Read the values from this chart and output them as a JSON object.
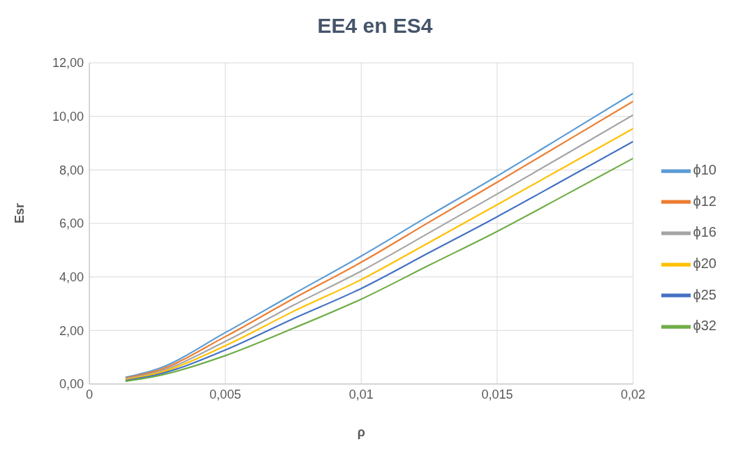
{
  "chart_data": {
    "type": "line",
    "title": "EE4 en ES4",
    "xlabel": "ρ",
    "ylabel": "Esr",
    "x": [
      0.00133,
      0.0025,
      0.005,
      0.0075,
      0.01,
      0.0125,
      0.015,
      0.0175,
      0.02
    ],
    "series": [
      {
        "name": "ϕ10",
        "color": "#5b9bd5",
        "values": [
          0.25,
          0.56,
          1.92,
          3.36,
          4.78,
          6.29,
          7.77,
          9.31,
          10.86
        ]
      },
      {
        "name": "ϕ12",
        "color": "#ed7d31",
        "values": [
          0.22,
          0.5,
          1.77,
          3.19,
          4.55,
          6.05,
          7.54,
          9.05,
          10.56
        ]
      },
      {
        "name": "ϕ16",
        "color": "#a5a5a5",
        "values": [
          0.19,
          0.45,
          1.59,
          2.94,
          4.22,
          5.65,
          7.1,
          8.57,
          10.05
        ]
      },
      {
        "name": "ϕ20",
        "color": "#ffc000",
        "values": [
          0.16,
          0.4,
          1.43,
          2.71,
          3.9,
          5.29,
          6.7,
          8.12,
          9.54
        ]
      },
      {
        "name": "ϕ25",
        "color": "#4472c4",
        "values": [
          0.13,
          0.35,
          1.27,
          2.44,
          3.57,
          4.91,
          6.25,
          7.65,
          9.06
        ]
      },
      {
        "name": "ϕ32",
        "color": "#70ad47",
        "values": [
          0.1,
          0.3,
          1.06,
          2.08,
          3.17,
          4.44,
          5.7,
          7.06,
          8.43
        ]
      }
    ],
    "xlim": [
      0,
      0.02
    ],
    "xticks": [
      0,
      {
        "value": 0.005,
        "label": "0,005"
      },
      {
        "value": 0.01,
        "label": "0,01"
      },
      {
        "value": 0.015,
        "label": "0,015"
      },
      {
        "value": 0.02,
        "label": "0,02"
      }
    ],
    "ylim": [
      0,
      12
    ],
    "yticks": [
      {
        "value": 0,
        "label": "0,00"
      },
      {
        "value": 2,
        "label": "2,00"
      },
      {
        "value": 4,
        "label": "4,00"
      },
      {
        "value": 6,
        "label": "6,00"
      },
      {
        "value": 8,
        "label": "8,00"
      },
      {
        "value": 10,
        "label": "10,00"
      },
      {
        "value": 12,
        "label": "12,00"
      }
    ],
    "grid": true,
    "legend": "right",
    "marker": "none",
    "line_style": "solid"
  }
}
